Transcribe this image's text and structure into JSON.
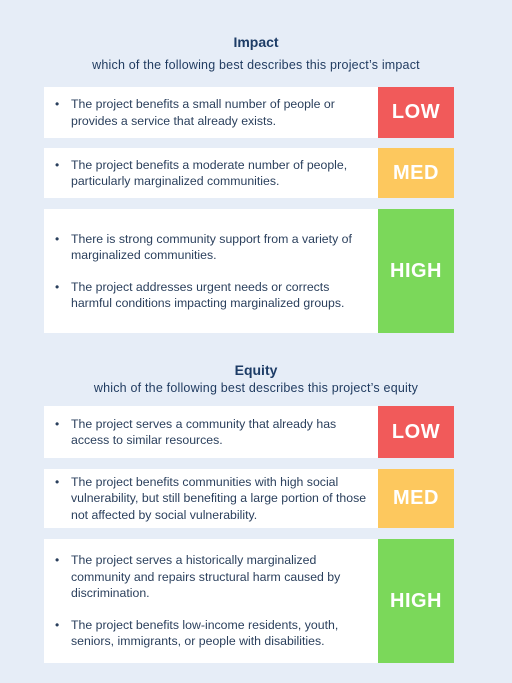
{
  "sections": [
    {
      "title": "Impact",
      "subtitle": "which of the following best describes this project’s impact",
      "rows": [
        {
          "bullets": [
            "The project benefits a small number of people or provides a service that already exists."
          ],
          "badge": "LOW",
          "badge_color": "#f15a5a"
        },
        {
          "bullets": [
            "The project benefits a moderate number of people, particularly marginalized communities."
          ],
          "badge": "MED",
          "badge_color": "#fdc85e"
        },
        {
          "bullets": [
            "There is strong community support from a variety of marginalized communities.",
            "The project addresses urgent needs or corrects harmful conditions impacting marginalized groups."
          ],
          "badge": "HIGH",
          "badge_color": "#7bd85a"
        }
      ]
    },
    {
      "title": "Equity",
      "subtitle": "which of the following best describes this project’s equity",
      "rows": [
        {
          "bullets": [
            "The project serves a community that already has access to similar resources."
          ],
          "badge": "LOW",
          "badge_color": "#f15a5a"
        },
        {
          "bullets": [
            "The project benefits communities with high social vulnerability, but still benefiting a large portion of those not affected by social vulnerability."
          ],
          "badge": "MED",
          "badge_color": "#fdc85e"
        },
        {
          "bullets": [
            "The project serves a historically marginalized community and repairs structural harm caused by discrimination.",
            "The project benefits low-income residents, youth, seniors, immigrants, or people with disabilities."
          ],
          "badge": "HIGH",
          "badge_color": "#7bd85a"
        }
      ]
    }
  ]
}
